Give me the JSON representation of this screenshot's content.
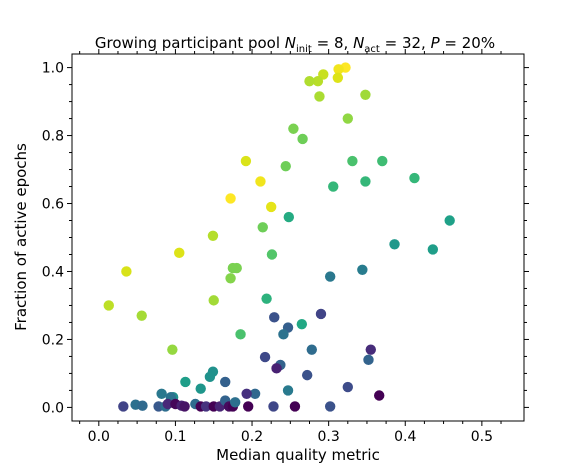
{
  "chart_data": {
    "type": "scatter",
    "title": {
      "prefix": "Growing participant pool ",
      "n_init": "8",
      "n_act": "32",
      "p": "20%"
    },
    "xlabel": "Median quality metric",
    "ylabel": "Fraction of active epochs",
    "xlim": [
      -0.035,
      0.555
    ],
    "ylim": [
      -0.04,
      1.04
    ],
    "xticks": [
      0.0,
      0.1,
      0.2,
      0.3,
      0.4,
      0.5
    ],
    "xtick_labels": [
      "0.0",
      "0.1",
      "0.2",
      "0.3",
      "0.4",
      "0.5"
    ],
    "yticks": [
      0.0,
      0.2,
      0.4,
      0.6,
      0.8,
      1.0
    ],
    "ytick_labels": [
      "0.0",
      "0.2",
      "0.4",
      "0.6",
      "0.8",
      "1.0"
    ],
    "grid": false,
    "legend": "none",
    "colormap": "viridis",
    "points": [
      {
        "x": 0.322,
        "y": 1.0,
        "c": "#fde725"
      },
      {
        "x": 0.313,
        "y": 0.995,
        "c": "#f1e51d"
      },
      {
        "x": 0.312,
        "y": 0.97,
        "c": "#dde318"
      },
      {
        "x": 0.293,
        "y": 0.98,
        "c": "#c8e020"
      },
      {
        "x": 0.286,
        "y": 0.96,
        "c": "#b8de29"
      },
      {
        "x": 0.275,
        "y": 0.96,
        "c": "#b0dd2f"
      },
      {
        "x": 0.288,
        "y": 0.915,
        "c": "#aadc32"
      },
      {
        "x": 0.348,
        "y": 0.92,
        "c": "#a0da39"
      },
      {
        "x": 0.325,
        "y": 0.85,
        "c": "#90d743"
      },
      {
        "x": 0.254,
        "y": 0.82,
        "c": "#7ad151"
      },
      {
        "x": 0.266,
        "y": 0.79,
        "c": "#6ece58"
      },
      {
        "x": 0.192,
        "y": 0.725,
        "c": "#dae319"
      },
      {
        "x": 0.211,
        "y": 0.665,
        "c": "#f1e51d"
      },
      {
        "x": 0.172,
        "y": 0.615,
        "c": "#fde725"
      },
      {
        "x": 0.225,
        "y": 0.59,
        "c": "#e5e419"
      },
      {
        "x": 0.105,
        "y": 0.455,
        "c": "#dde318"
      },
      {
        "x": 0.149,
        "y": 0.505,
        "c": "#b5de2b"
      },
      {
        "x": 0.036,
        "y": 0.4,
        "c": "#d8e219"
      },
      {
        "x": 0.013,
        "y": 0.3,
        "c": "#bddf26"
      },
      {
        "x": 0.056,
        "y": 0.27,
        "c": "#a5db36"
      },
      {
        "x": 0.244,
        "y": 0.71,
        "c": "#6ece58"
      },
      {
        "x": 0.331,
        "y": 0.725,
        "c": "#4ac16d"
      },
      {
        "x": 0.37,
        "y": 0.725,
        "c": "#3fbc73"
      },
      {
        "x": 0.306,
        "y": 0.65,
        "c": "#35b779"
      },
      {
        "x": 0.348,
        "y": 0.665,
        "c": "#35b779"
      },
      {
        "x": 0.412,
        "y": 0.675,
        "c": "#35b779"
      },
      {
        "x": 0.458,
        "y": 0.55,
        "c": "#1fa188"
      },
      {
        "x": 0.248,
        "y": 0.56,
        "c": "#25ab82"
      },
      {
        "x": 0.214,
        "y": 0.53,
        "c": "#6ece58"
      },
      {
        "x": 0.226,
        "y": 0.45,
        "c": "#52c569"
      },
      {
        "x": 0.175,
        "y": 0.41,
        "c": "#7ad151"
      },
      {
        "x": 0.18,
        "y": 0.41,
        "c": "#7ad151"
      },
      {
        "x": 0.172,
        "y": 0.38,
        "c": "#84d44b"
      },
      {
        "x": 0.15,
        "y": 0.315,
        "c": "#a2da37"
      },
      {
        "x": 0.096,
        "y": 0.17,
        "c": "#95d840"
      },
      {
        "x": 0.185,
        "y": 0.215,
        "c": "#4ac16d"
      },
      {
        "x": 0.219,
        "y": 0.32,
        "c": "#2db27d"
      },
      {
        "x": 0.265,
        "y": 0.245,
        "c": "#22a884"
      },
      {
        "x": 0.386,
        "y": 0.48,
        "c": "#1f988b"
      },
      {
        "x": 0.436,
        "y": 0.465,
        "c": "#1f9e89"
      },
      {
        "x": 0.344,
        "y": 0.405,
        "c": "#287c8e"
      },
      {
        "x": 0.302,
        "y": 0.385,
        "c": "#2a788e"
      },
      {
        "x": 0.229,
        "y": 0.265,
        "c": "#3b528b"
      },
      {
        "x": 0.247,
        "y": 0.235,
        "c": "#355f8d"
      },
      {
        "x": 0.241,
        "y": 0.215,
        "c": "#2c728e"
      },
      {
        "x": 0.29,
        "y": 0.275,
        "c": "#414487"
      },
      {
        "x": 0.278,
        "y": 0.17,
        "c": "#2f6c8e"
      },
      {
        "x": 0.355,
        "y": 0.17,
        "c": "#472c7a"
      },
      {
        "x": 0.352,
        "y": 0.14,
        "c": "#33638d"
      },
      {
        "x": 0.217,
        "y": 0.148,
        "c": "#3e4989"
      },
      {
        "x": 0.237,
        "y": 0.125,
        "c": "#33638d"
      },
      {
        "x": 0.232,
        "y": 0.115,
        "c": "#482173"
      },
      {
        "x": 0.149,
        "y": 0.105,
        "c": "#21918c"
      },
      {
        "x": 0.145,
        "y": 0.09,
        "c": "#20928c"
      },
      {
        "x": 0.113,
        "y": 0.075,
        "c": "#1f9e89"
      },
      {
        "x": 0.133,
        "y": 0.055,
        "c": "#1f968b"
      },
      {
        "x": 0.165,
        "y": 0.075,
        "c": "#34618d"
      },
      {
        "x": 0.272,
        "y": 0.095,
        "c": "#3b528b"
      },
      {
        "x": 0.325,
        "y": 0.06,
        "c": "#3e4c8a"
      },
      {
        "x": 0.366,
        "y": 0.035,
        "c": "#440154"
      },
      {
        "x": 0.247,
        "y": 0.05,
        "c": "#297a8e"
      },
      {
        "x": 0.204,
        "y": 0.04,
        "c": "#31688e"
      },
      {
        "x": 0.193,
        "y": 0.04,
        "c": "#46307e"
      },
      {
        "x": 0.082,
        "y": 0.04,
        "c": "#2a788e"
      },
      {
        "x": 0.097,
        "y": 0.03,
        "c": "#21918c"
      },
      {
        "x": 0.094,
        "y": 0.03,
        "c": "#2c728e"
      },
      {
        "x": 0.048,
        "y": 0.008,
        "c": "#2d708e"
      },
      {
        "x": 0.057,
        "y": 0.005,
        "c": "#306a8e"
      },
      {
        "x": 0.032,
        "y": 0.003,
        "c": "#414487"
      },
      {
        "x": 0.078,
        "y": 0.003,
        "c": "#38598c"
      },
      {
        "x": 0.087,
        "y": 0.003,
        "c": "#2e6e8e"
      },
      {
        "x": 0.09,
        "y": 0.01,
        "c": "#482878"
      },
      {
        "x": 0.1,
        "y": 0.01,
        "c": "#450559"
      },
      {
        "x": 0.108,
        "y": 0.005,
        "c": "#482173"
      },
      {
        "x": 0.112,
        "y": 0.003,
        "c": "#471365"
      },
      {
        "x": 0.126,
        "y": 0.01,
        "c": "#2f6c8e"
      },
      {
        "x": 0.133,
        "y": 0.003,
        "c": "#440154"
      },
      {
        "x": 0.14,
        "y": 0.003,
        "c": "#46337f"
      },
      {
        "x": 0.15,
        "y": 0.003,
        "c": "#440154"
      },
      {
        "x": 0.158,
        "y": 0.003,
        "c": "#482475"
      },
      {
        "x": 0.165,
        "y": 0.02,
        "c": "#33638d"
      },
      {
        "x": 0.17,
        "y": 0.003,
        "c": "#460b5e"
      },
      {
        "x": 0.175,
        "y": 0.003,
        "c": "#440154"
      },
      {
        "x": 0.178,
        "y": 0.015,
        "c": "#2d708e"
      },
      {
        "x": 0.195,
        "y": 0.003,
        "c": "#440154"
      },
      {
        "x": 0.228,
        "y": 0.003,
        "c": "#3f4788"
      },
      {
        "x": 0.256,
        "y": 0.003,
        "c": "#440154"
      },
      {
        "x": 0.302,
        "y": 0.003,
        "c": "#3b528b"
      }
    ]
  }
}
